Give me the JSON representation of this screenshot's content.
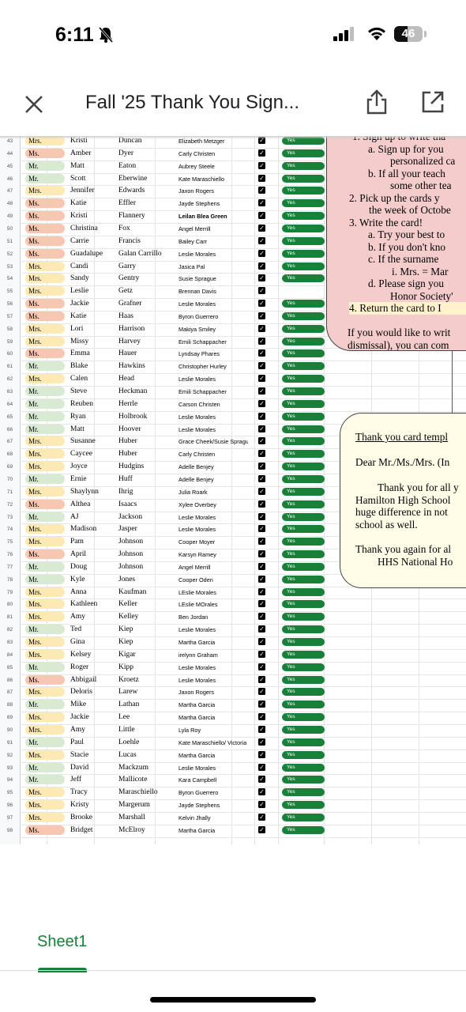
{
  "status_bar": {
    "time": "6:11",
    "battery": "46",
    "icons": [
      "bell-slash-icon",
      "signal-icon",
      "wifi-icon",
      "battery-icon"
    ]
  },
  "app_bar": {
    "title": "Fall '25 Thank You Sign...",
    "close_icon": "close-icon",
    "share_icon": "share-icon",
    "open_icon": "open-external-icon"
  },
  "colors": {
    "mrs": "#fde9b4",
    "ms": "#f8c7b1",
    "mr": "#d9ead3",
    "yes": "#188038",
    "instructions_bg": "#f4cccc",
    "template_bg": "#fffde8",
    "tab_green": "#188038"
  },
  "rows": [
    {
      "n": "43",
      "title": "Mrs.",
      "first": "Kristi",
      "last": "Duncan",
      "writer": "Elizabeth Metzger",
      "checked": true,
      "status": "Yes"
    },
    {
      "n": "44",
      "title": "Ms.",
      "first": "Amber",
      "last": "Dyer",
      "writer": "Carly Christen",
      "checked": true,
      "status": "Yes"
    },
    {
      "n": "45",
      "title": "Mr.",
      "first": "Matt",
      "last": "Eaton",
      "writer": "Aubrey Steele",
      "checked": true,
      "status": "Yes"
    },
    {
      "n": "46",
      "title": "Mr.",
      "first": "Scott",
      "last": "Eberwine",
      "writer": "Kate Maraschiello",
      "checked": true,
      "status": "Yes"
    },
    {
      "n": "47",
      "title": "Mrs.",
      "first": "Jennifer",
      "last": "Edwards",
      "writer": "Jaxon Rogers",
      "checked": true,
      "status": "Yes"
    },
    {
      "n": "48",
      "title": "Ms.",
      "first": "Katie",
      "last": "Effler",
      "writer": "Jayde Stephens",
      "checked": true,
      "status": "Yes"
    },
    {
      "n": "49",
      "title": "Ms.",
      "first": "Kristi",
      "last": "Flannery",
      "writer": "Leilan Blea Green",
      "checked": true,
      "status": "Yes",
      "bold": true
    },
    {
      "n": "50",
      "title": "Ms.",
      "first": "Christina",
      "last": "Fox",
      "writer": "Angel Merrill",
      "checked": true,
      "status": "Yes"
    },
    {
      "n": "51",
      "title": "Ms.",
      "first": "Carrie",
      "last": "Francis",
      "writer": "Bailey Carr",
      "checked": true,
      "status": "Yes"
    },
    {
      "n": "52",
      "title": "Ms.",
      "first": "Guadalupe",
      "last": "Galan Carrillo",
      "writer": "Leslie Morales",
      "checked": true,
      "status": "Yes"
    },
    {
      "n": "53",
      "title": "Mrs.",
      "first": "Candi",
      "last": "Garry",
      "writer": "Jasica Pal",
      "checked": true,
      "status": "Yes"
    },
    {
      "n": "54",
      "title": "Mrs.",
      "first": "Sandy",
      "last": "Gentry",
      "writer": "Susie Sprague",
      "checked": true,
      "status": "Yes"
    },
    {
      "n": "55",
      "title": "Mrs.",
      "first": "Leslie",
      "last": "Getz",
      "writer": "Brennan Davis",
      "checked": true,
      "status": ""
    },
    {
      "n": "56",
      "title": "Ms.",
      "first": "Jackie",
      "last": "Grafner",
      "writer": "Leslie Morales",
      "checked": true,
      "status": "Yes"
    },
    {
      "n": "57",
      "title": "Ms.",
      "first": "Katie",
      "last": "Haas",
      "writer": "Byron Guerrero",
      "checked": true,
      "status": "Yes"
    },
    {
      "n": "58",
      "title": "Mrs.",
      "first": "Lori",
      "last": "Harrison",
      "writer": "Makiya Smiley",
      "checked": true,
      "status": "Yes"
    },
    {
      "n": "59",
      "title": "Mrs.",
      "first": "Missy",
      "last": "Harvey",
      "writer": "Emili Schappacher",
      "checked": true,
      "status": "Yes"
    },
    {
      "n": "60",
      "title": "Ms.",
      "first": "Emma",
      "last": "Hauer",
      "writer": "Lyndsay Phares",
      "checked": true,
      "status": "Yes"
    },
    {
      "n": "61",
      "title": "Mr.",
      "first": "Blake",
      "last": "Hawkins",
      "writer": "Christopher Hurley",
      "checked": true,
      "status": "Yes"
    },
    {
      "n": "62",
      "title": "Mrs.",
      "first": "Calen",
      "last": "Head",
      "writer": "Leslie Morales",
      "checked": true,
      "status": "Yes"
    },
    {
      "n": "63",
      "title": "Mr.",
      "first": "Steve",
      "last": "Heckman",
      "writer": "Emili Schappacher",
      "checked": true,
      "status": "Yes"
    },
    {
      "n": "64",
      "title": "Mr.",
      "first": "Reuben",
      "last": "Herrle",
      "writer": "Carson Christen",
      "checked": true,
      "status": "Yes"
    },
    {
      "n": "65",
      "title": "Mr.",
      "first": "Ryan",
      "last": "Holbrook",
      "writer": "Leslie Morales",
      "checked": true,
      "status": "Yes"
    },
    {
      "n": "66",
      "title": "Mr.",
      "first": "Matt",
      "last": "Hoover",
      "writer": "Leslie Morales",
      "checked": true,
      "status": "Yes"
    },
    {
      "n": "67",
      "title": "Mrs.",
      "first": "Susanne",
      "last": "Huber",
      "writer": "Grace Cheek/Susie Sprague",
      "checked": true,
      "status": "Yes"
    },
    {
      "n": "68",
      "title": "Mrs.",
      "first": "Caycee",
      "last": "Huber",
      "writer": "Carly Christen",
      "checked": true,
      "status": "Yes"
    },
    {
      "n": "69",
      "title": "Mrs.",
      "first": "Joyce",
      "last": "Hudgins",
      "writer": "Adelle Benjey",
      "checked": true,
      "status": "Yes"
    },
    {
      "n": "70",
      "title": "Mr.",
      "first": "Ernie",
      "last": "Huff",
      "writer": "Adelle Benjey",
      "checked": true,
      "status": "Yes"
    },
    {
      "n": "71",
      "title": "Mrs.",
      "first": "Shaylynn",
      "last": "Ihrig",
      "writer": "Julia Roark",
      "checked": true,
      "status": "Yes"
    },
    {
      "n": "72",
      "title": "Ms.",
      "first": "Althea",
      "last": "Isaacs",
      "writer": "Xylee Overbey",
      "checked": true,
      "status": "Yes"
    },
    {
      "n": "73",
      "title": "Mr.",
      "first": "AJ",
      "last": "Jackson",
      "writer": "Leslie Morales",
      "checked": true,
      "status": "Yes"
    },
    {
      "n": "74",
      "title": "Mrs.",
      "first": "Madison",
      "last": "Jasper",
      "writer": "Leslie Morales",
      "checked": true,
      "status": "Yes"
    },
    {
      "n": "75",
      "title": "Mrs.",
      "first": "Pam",
      "last": "Johnson",
      "writer": "Cooper Moyer",
      "checked": true,
      "status": "Yes"
    },
    {
      "n": "76",
      "title": "Ms.",
      "first": "April",
      "last": "Johnson",
      "writer": "Karsyn Ramey",
      "checked": true,
      "status": "Yes"
    },
    {
      "n": "77",
      "title": "Mr.",
      "first": "Doug",
      "last": "Johnson",
      "writer": "Angel Merrill",
      "checked": true,
      "status": "Yes"
    },
    {
      "n": "78",
      "title": "Mr.",
      "first": "Kyle",
      "last": "Jones",
      "writer": "Cooper Oden",
      "checked": true,
      "status": "Yes"
    },
    {
      "n": "79",
      "title": "Mrs.",
      "first": "Anna",
      "last": "Kaufman",
      "writer": "LEslie Morales",
      "checked": true,
      "status": "Yes"
    },
    {
      "n": "80",
      "title": "Mrs.",
      "first": "Kathleen",
      "last": "Keller",
      "writer": "LEslie MOrales",
      "checked": true,
      "status": "Yes"
    },
    {
      "n": "81",
      "title": "Mrs.",
      "first": "Amy",
      "last": "Kelley",
      "writer": "Ben Jordan",
      "checked": true,
      "status": "Yes"
    },
    {
      "n": "82",
      "title": "Mr.",
      "first": "Ted",
      "last": "Kiep",
      "writer": "Leslie Morales",
      "checked": true,
      "status": "Yes"
    },
    {
      "n": "83",
      "title": "Mrs.",
      "first": "Gina",
      "last": "Kiep",
      "writer": "Martha Garcia",
      "checked": true,
      "status": "Yes"
    },
    {
      "n": "84",
      "title": "Mrs.",
      "first": "Kelsey",
      "last": "Kigar",
      "writer": "irelynn Graham",
      "checked": true,
      "status": "Yes"
    },
    {
      "n": "85",
      "title": "Mr.",
      "first": "Roger",
      "last": "Kipp",
      "writer": "Leslie Morales",
      "checked": true,
      "status": "Yes"
    },
    {
      "n": "86",
      "title": "Ms.",
      "first": "Abbigail",
      "last": "Kroetz",
      "writer": "Leslie Morales",
      "checked": true,
      "status": "Yes"
    },
    {
      "n": "87",
      "title": "Mrs.",
      "first": "Deloris",
      "last": "Larew",
      "writer": "Jaxon Rogers",
      "checked": true,
      "status": "Yes"
    },
    {
      "n": "88",
      "title": "Mr.",
      "first": "Mike",
      "last": "Lathan",
      "writer": "Martha Garcia",
      "checked": true,
      "status": "Yes"
    },
    {
      "n": "89",
      "title": "Mrs.",
      "first": "Jackie",
      "last": "Lee",
      "writer": "Martha Garcia",
      "checked": true,
      "status": "Yes"
    },
    {
      "n": "90",
      "title": "Mrs.",
      "first": "Amy",
      "last": "Little",
      "writer": "Lyla Roy",
      "checked": true,
      "status": "Yes"
    },
    {
      "n": "91",
      "title": "Mr.",
      "first": "Paul",
      "last": "Loehle",
      "writer": "Kate Maraschiello/ Victoria",
      "checked": true,
      "status": "Yes"
    },
    {
      "n": "92",
      "title": "Mrs.",
      "first": "Stacie",
      "last": "Lucas",
      "writer": "Martha Garcia",
      "checked": true,
      "status": "Yes"
    },
    {
      "n": "93",
      "title": "Mr.",
      "first": "David",
      "last": "Mackzum",
      "writer": "Leslie Morales",
      "checked": true,
      "status": "Yes"
    },
    {
      "n": "94",
      "title": "Mr.",
      "first": "Jeff",
      "last": "Mallicote",
      "writer": "Kara Campbell",
      "checked": true,
      "status": "Yes"
    },
    {
      "n": "95",
      "title": "Mrs.",
      "first": "Tracy",
      "last": "Maraschiello",
      "writer": "Byron Guerrero",
      "checked": true,
      "status": "Yes"
    },
    {
      "n": "96",
      "title": "Mrs.",
      "first": "Kristy",
      "last": "Margerum",
      "writer": "Jayde Stephens",
      "checked": true,
      "status": "Yes"
    },
    {
      "n": "97",
      "title": "Mrs.",
      "first": "Brooke",
      "last": "Marshall",
      "writer": "Kelvin Jhally",
      "checked": true,
      "status": "Yes"
    },
    {
      "n": "98",
      "title": "Ms.",
      "first": "Bridget",
      "last": "McElroy",
      "writer": "Martha Garcia",
      "checked": true,
      "status": "Yes"
    }
  ],
  "instructions": {
    "lines": [
      "1.  Sign up to write tha",
      "a.  Sign up for you",
      "personalized ca",
      "b.  If all your teach",
      "some other tea",
      "2.  Pick up the cards y",
      "the week of Octobe",
      "3.  Write the card!",
      "a.  Try your best to",
      "b.  If you don't kno",
      "c.  If the surname",
      "i.   Mrs. = Mar",
      "d.  Please sign you",
      "Honor Society'",
      "4.  Return the card to I",
      "If you would like to writ",
      "dismissal), you can com"
    ]
  },
  "template": {
    "heading": "Thank you card templ",
    "greeting": "Dear Mr./Ms./Mrs. (In",
    "body": [
      "Thank you for all y",
      "Hamilton High School",
      "huge difference in not",
      "school as well."
    ],
    "closing": [
      "Thank you again for al",
      "HHS National Ho"
    ]
  },
  "sheet_tab": {
    "label": "Sheet1"
  }
}
